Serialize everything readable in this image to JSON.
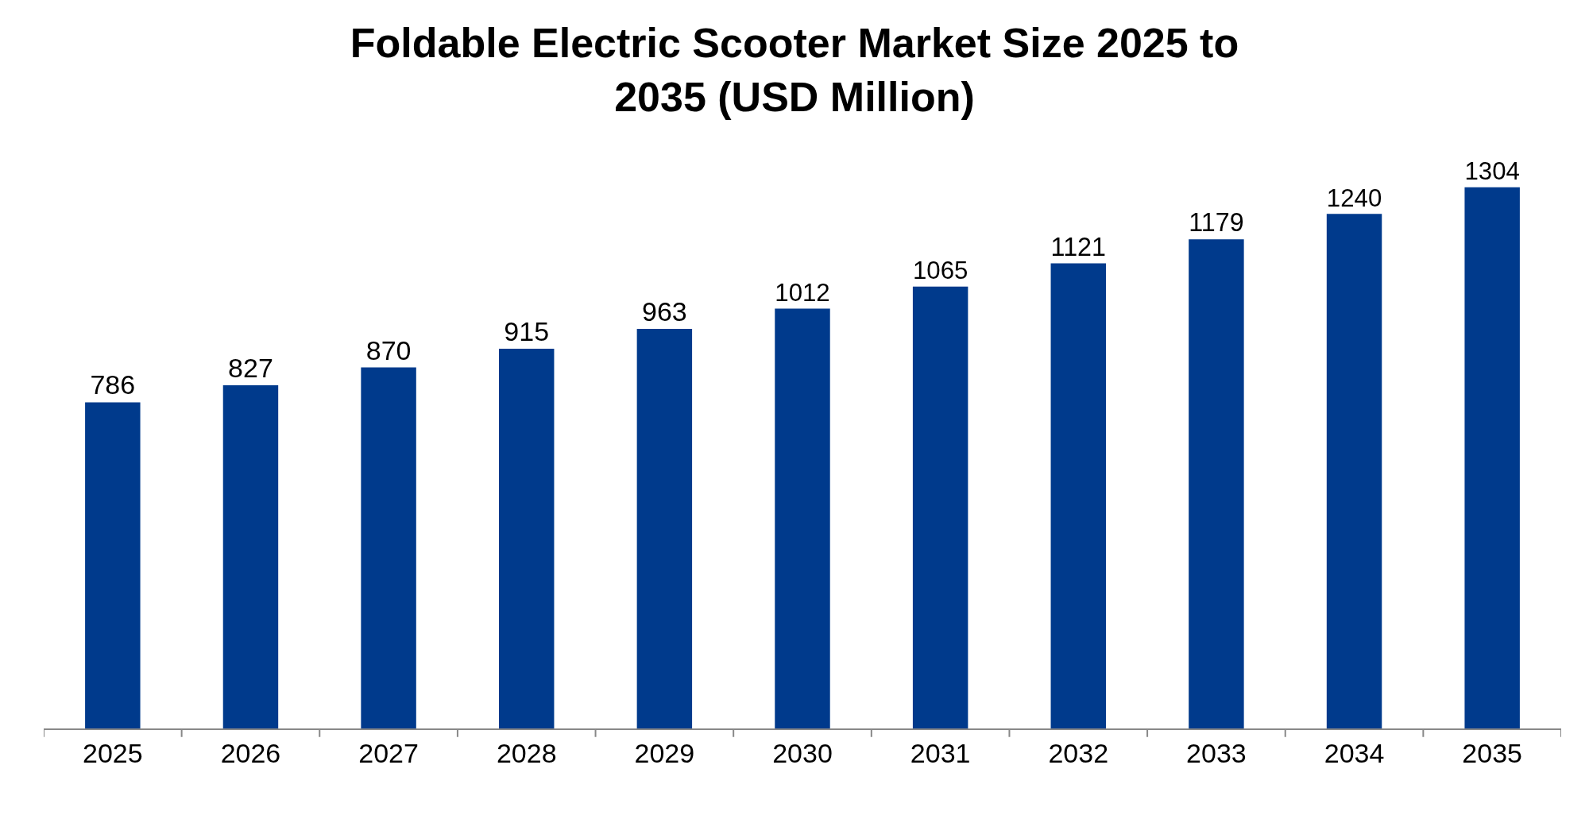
{
  "chart_data": {
    "type": "bar",
    "title": "Foldable Electric Scooter Market Size 2025 to\n2035 (USD Million)",
    "categories": [
      "2025",
      "2026",
      "2027",
      "2028",
      "2029",
      "2030",
      "2031",
      "2032",
      "2033",
      "2034",
      "2035"
    ],
    "values": [
      786,
      827,
      870,
      915,
      963,
      1012,
      1065,
      1121,
      1179,
      1240,
      1304
    ],
    "color": "#003a8c",
    "data_labels": true
  }
}
